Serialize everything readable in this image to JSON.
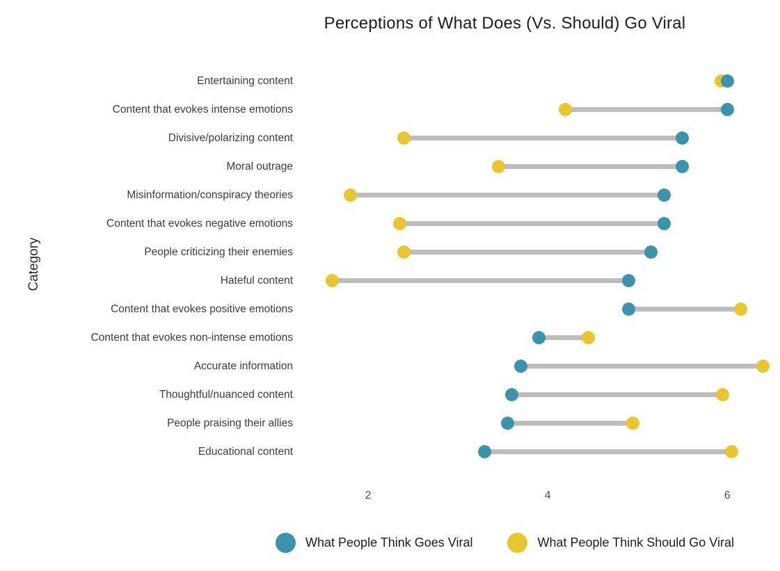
{
  "title": "Perceptions of What Does (Vs. Should) Go Viral",
  "y_axis_label": "Category",
  "colors": {
    "goes_viral": "#3D93AC",
    "should_go_viral": "#E7C62F",
    "connector": "#BDBDBD"
  },
  "legend": {
    "goes_viral_label": "What People Think Goes Viral",
    "should_go_viral_label": "What People Think Should Go Viral"
  },
  "chart_data": {
    "type": "scatter",
    "subtype": "dumbbell",
    "title": "Perceptions of What Does (Vs. Should) Go Viral",
    "xlabel": "",
    "ylabel": "Category",
    "categories": [
      "Entertaining content",
      "Content that evokes intense emotions",
      "Divisive/polarizing content",
      "Moral outrage",
      "Misinformation/conspiracy theories",
      "Content that evokes negative emotions",
      "People criticizing their enemies",
      "Hateful content",
      "Content that evokes positive emotions",
      "Content that evokes non-intense emotions",
      "Accurate information",
      "Thoughtful/nuanced content",
      "People praising their allies",
      "Educational content"
    ],
    "series": [
      {
        "name": "What People Think Goes Viral",
        "color": "#3D93AC",
        "values": [
          6.0,
          6.0,
          5.5,
          5.5,
          5.3,
          5.3,
          5.15,
          4.9,
          4.9,
          3.9,
          3.7,
          3.6,
          3.55,
          3.3
        ]
      },
      {
        "name": "What People Think Should Go Viral",
        "color": "#E7C62F",
        "values": [
          5.93,
          4.2,
          2.4,
          3.45,
          1.8,
          2.35,
          2.4,
          1.6,
          6.15,
          4.45,
          6.4,
          5.95,
          4.95,
          6.05
        ]
      }
    ],
    "xticks": [
      2,
      4,
      6
    ],
    "xlim": [
      1.31,
      6.54
    ],
    "grid": false,
    "legend_position": "bottom",
    "connector_color": "#BDBDBD"
  }
}
